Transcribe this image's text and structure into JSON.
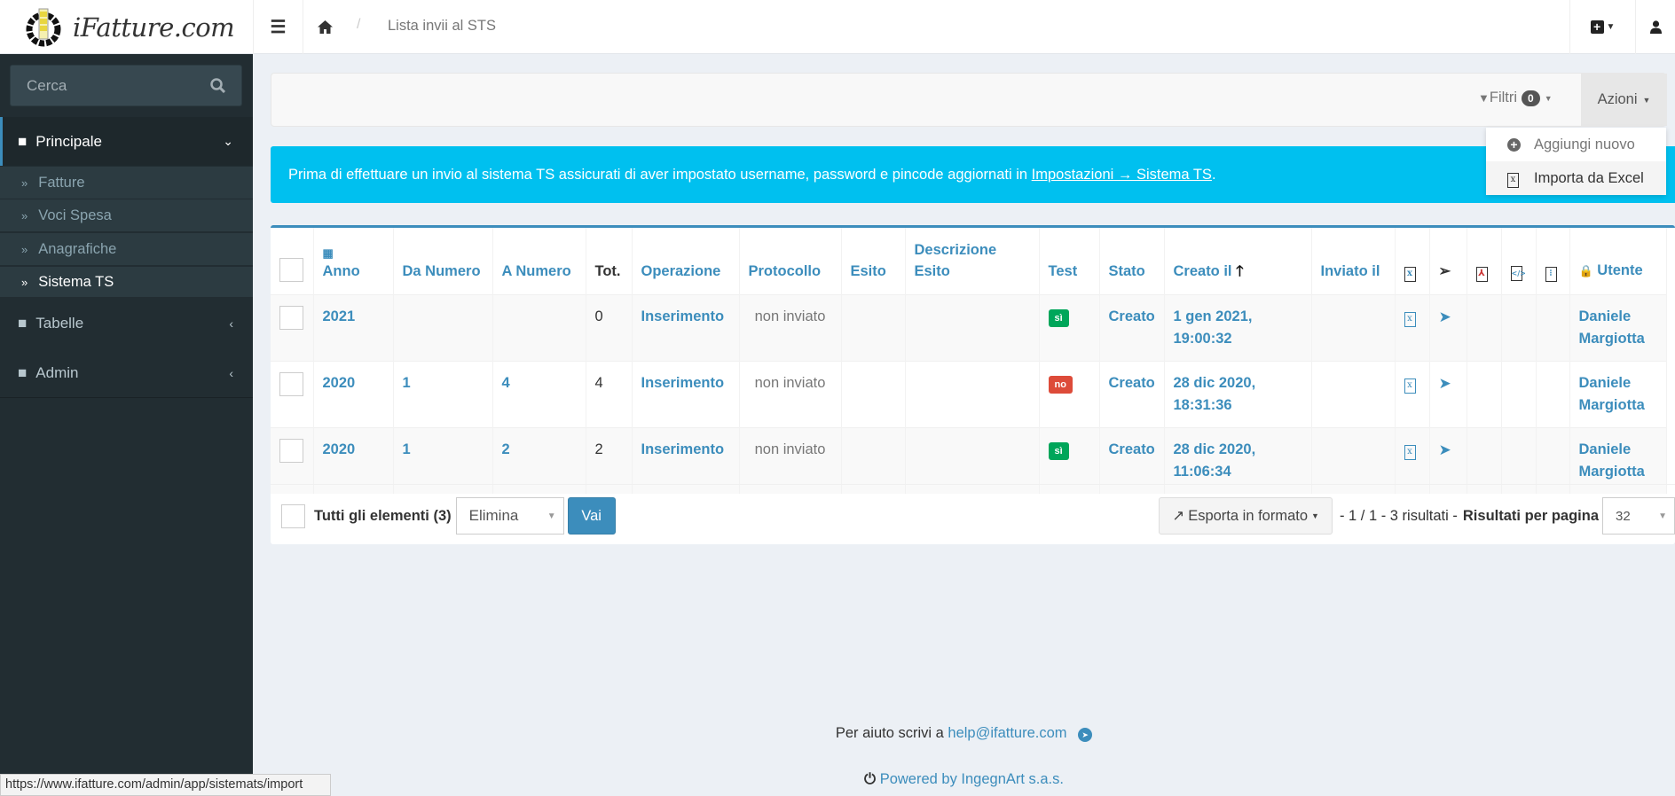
{
  "header": {
    "brand": "iFatture.com",
    "breadcrumb_current": "Lista invii al STS"
  },
  "sidebar": {
    "search_placeholder": "Cerca",
    "sections": [
      {
        "label": "Principale"
      },
      {
        "label": "Tabelle"
      },
      {
        "label": "Admin"
      }
    ],
    "items": [
      {
        "label": "Fatture"
      },
      {
        "label": "Voci Spesa"
      },
      {
        "label": "Anagrafiche"
      },
      {
        "label": "Sistema TS"
      }
    ]
  },
  "toolbar": {
    "filters_label": "Filtri",
    "filters_count": "0",
    "actions_label": "Azioni",
    "actions_menu": [
      {
        "label": "Aggiungi nuovo"
      },
      {
        "label": "Importa da Excel"
      }
    ]
  },
  "alert": {
    "text": "Prima di effettuare un invio al sistema TS assicurati di aver impostato username, password e pincode aggiornati in ",
    "link": "Impostazioni → Sistema TS",
    "suffix": "."
  },
  "table": {
    "columns": [
      "Anno",
      "Da Numero",
      "A Numero",
      "Tot.",
      "Operazione",
      "Protocollo",
      "Esito",
      "Descrizione Esito",
      "Test",
      "Stato",
      "Creato il",
      "Inviato il",
      "Utente"
    ],
    "rows": [
      {
        "anno": "2021",
        "da": "",
        "a": "",
        "tot": "0",
        "operazione": "Inserimento",
        "protocollo": "non inviato",
        "esito": "",
        "descrizione": "",
        "test": "sì",
        "test_color": "#00a65a",
        "stato": "Creato",
        "creato": "1 gen 2021, 19:00:32",
        "inviato": "",
        "utente": "Daniele Margiotta"
      },
      {
        "anno": "2020",
        "da": "1",
        "a": "4",
        "tot": "4",
        "operazione": "Inserimento",
        "protocollo": "non inviato",
        "esito": "",
        "descrizione": "",
        "test": "no",
        "test_color": "#dd4b39",
        "stato": "Creato",
        "creato": "28 dic 2020, 18:31:36",
        "inviato": "",
        "utente": "Daniele Margiotta"
      },
      {
        "anno": "2020",
        "da": "1",
        "a": "2",
        "tot": "2",
        "operazione": "Inserimento",
        "protocollo": "non inviato",
        "esito": "",
        "descrizione": "",
        "test": "sì",
        "test_color": "#00a65a",
        "stato": "Creato",
        "creato": "28 dic 2020, 11:06:34",
        "inviato": "",
        "utente": "Daniele Margiotta"
      }
    ]
  },
  "batch": {
    "all_label": "Tutti gli elementi (3)",
    "action_value": "Elimina",
    "go_label": "Vai",
    "export_label": "Esporta in formato",
    "pagination": "- 1 / 1 - 3 risultati -",
    "per_page_label": "Risultati per pagina",
    "per_page_value": "32"
  },
  "footer": {
    "help_text": "Per aiuto scrivi a ",
    "help_email": "help@ifatture.com",
    "powered": "Powered by IngegnArt s.a.s."
  },
  "status_url": "https://www.ifatture.com/admin/app/sistemats/import",
  "colors": {
    "accent": "#3c8dbc",
    "sidebar": "#222d32",
    "alert": "#00c0ef"
  }
}
